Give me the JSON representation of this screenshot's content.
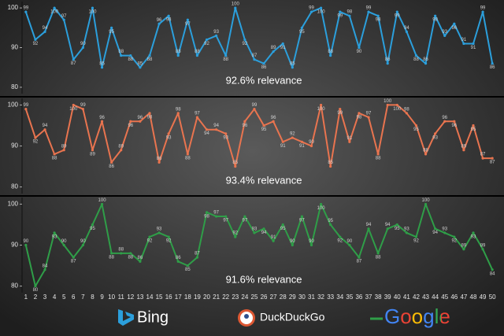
{
  "chart_data": [
    {
      "type": "line",
      "annotation": "92.6% relevance",
      "x": [
        1,
        2,
        3,
        4,
        5,
        6,
        7,
        8,
        9,
        10,
        11,
        12,
        13,
        14,
        15,
        16,
        17,
        18,
        19,
        20,
        21,
        22,
        23,
        24,
        25,
        26,
        27,
        28,
        29,
        30,
        31,
        32,
        33,
        34,
        35,
        36,
        37,
        38,
        39,
        40,
        41,
        42,
        43,
        44,
        45,
        46,
        47,
        48,
        49,
        50
      ],
      "xlim": [
        0.6,
        50.4
      ],
      "ylim": [
        78,
        102
      ],
      "yticks": [
        80,
        90,
        100
      ],
      "series": [
        {
          "name": "Bing",
          "color": "#2b9fdc",
          "values": [
            99,
            92,
            94,
            100,
            97,
            87,
            90,
            100,
            85,
            95,
            88,
            88,
            85,
            88,
            96,
            98,
            88,
            97,
            88,
            92,
            93,
            88,
            100,
            92,
            87,
            86,
            89,
            91,
            85,
            95,
            99,
            100,
            88,
            99,
            98,
            90,
            99,
            98,
            86,
            99,
            94,
            88,
            86,
            98,
            93,
            96,
            91,
            91,
            99,
            86
          ]
        }
      ]
    },
    {
      "type": "line",
      "annotation": "93.4% relevance",
      "x": [
        1,
        2,
        3,
        4,
        5,
        6,
        7,
        8,
        9,
        10,
        11,
        12,
        13,
        14,
        15,
        16,
        17,
        18,
        19,
        20,
        21,
        22,
        23,
        24,
        25,
        26,
        27,
        28,
        29,
        30,
        31,
        32,
        33,
        34,
        35,
        36,
        37,
        38,
        39,
        40,
        41,
        42,
        43,
        44,
        45,
        46,
        47,
        48,
        49,
        50
      ],
      "xlim": [
        0.6,
        50.4
      ],
      "ylim": [
        78,
        102
      ],
      "yticks": [
        80,
        90,
        100
      ],
      "series": [
        {
          "name": "DuckDuckGo",
          "color": "#e9744f",
          "values": [
            99,
            92,
            94,
            88,
            89,
            100,
            99,
            89,
            96,
            86,
            89,
            96,
            96,
            98,
            86,
            93,
            98,
            88,
            97,
            94,
            94,
            93,
            85,
            96,
            99,
            95,
            96,
            91,
            92,
            91,
            90,
            100,
            85,
            99,
            91,
            98,
            97,
            88,
            100,
            100,
            98,
            95,
            88,
            93,
            96,
            96,
            89,
            95,
            87,
            87
          ]
        }
      ]
    },
    {
      "type": "line",
      "annotation": "91.6% relevance",
      "x": [
        1,
        2,
        3,
        4,
        5,
        6,
        7,
        8,
        9,
        10,
        11,
        12,
        13,
        14,
        15,
        16,
        17,
        18,
        19,
        20,
        21,
        22,
        23,
        24,
        25,
        26,
        27,
        28,
        29,
        30,
        31,
        32,
        33,
        34,
        35,
        36,
        37,
        38,
        39,
        40,
        41,
        42,
        43,
        44,
        45,
        46,
        47,
        48,
        49,
        50
      ],
      "xlim": [
        0.6,
        50.4
      ],
      "ylim": [
        78,
        102
      ],
      "yticks": [
        80,
        90,
        100
      ],
      "series": [
        {
          "name": "Google",
          "color": "#2f9e48",
          "values": [
            90,
            80,
            84,
            93,
            90,
            87,
            90,
            95,
            100,
            88,
            88,
            88,
            86,
            92,
            93,
            92,
            86,
            85,
            87,
            98,
            97,
            97,
            92,
            97,
            93,
            94,
            91,
            95,
            90,
            97,
            90,
            100,
            95,
            92,
            90,
            87,
            94,
            88,
            94,
            95,
            93,
            92,
            100,
            94,
            93,
            92,
            89,
            93,
            89,
            84
          ]
        }
      ]
    }
  ]
}
